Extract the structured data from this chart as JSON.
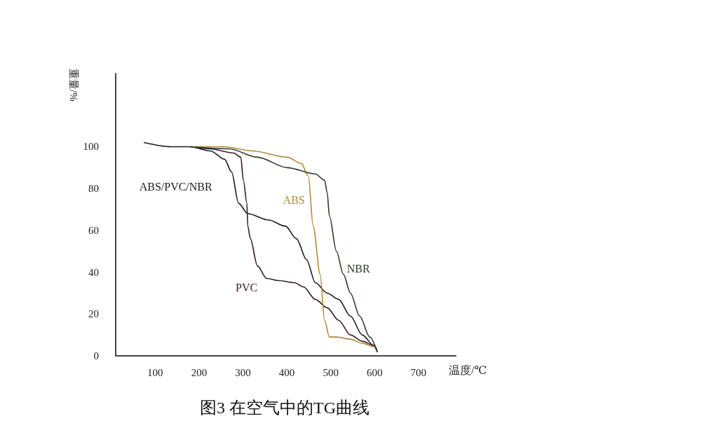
{
  "chart_data": {
    "type": "line",
    "title": "图3 在空气中的TG曲线",
    "xlabel": "温度/℃",
    "ylabel": "重量/%",
    "xlim": [
      10,
      785
    ],
    "ylim": [
      0,
      135
    ],
    "xticks": [
      100,
      200,
      300,
      400,
      500,
      600,
      700
    ],
    "yticks": [
      0,
      20,
      40,
      60,
      80,
      100
    ],
    "grid": false,
    "legend": false,
    "marker": "none",
    "line_style": "solid",
    "series": [
      {
        "name": "ABS/PVC/NBR",
        "color": "#1a1a1a",
        "x": [
          75,
          135,
          180,
          226,
          258,
          274,
          290,
          311,
          358,
          397,
          422,
          445,
          465,
          492,
          518,
          545,
          572,
          598,
          606
        ],
        "values": [
          102,
          100,
          100,
          98,
          94,
          88,
          73,
          68,
          65,
          62,
          56,
          46,
          35,
          30,
          27,
          19,
          10,
          5,
          2
        ]
      },
      {
        "name": "PVC",
        "color": "#3a1a24",
        "x": [
          180,
          226,
          279,
          295,
          301,
          309,
          311,
          317,
          333,
          354,
          381,
          417,
          438,
          465,
          492,
          518,
          545,
          572,
          598,
          606
        ],
        "values": [
          100,
          99,
          97,
          95,
          84,
          73,
          62,
          56,
          43,
          37,
          36,
          35,
          33,
          27,
          23,
          17,
          10,
          7,
          5,
          2
        ]
      },
      {
        "name": "ABS",
        "color": "#b08a3a",
        "x": [
          180,
          258,
          322,
          401,
          433,
          449,
          460,
          476,
          486,
          497,
          513,
          545,
          572,
          604,
          606
        ],
        "values": [
          100,
          100,
          98,
          95,
          92,
          86,
          62,
          39,
          17,
          9,
          9,
          8,
          6,
          4,
          2
        ]
      },
      {
        "name": "NBR",
        "color": "#2b3a2b",
        "x": [
          180,
          269,
          333,
          401,
          465,
          486,
          492,
          497,
          513,
          529,
          545,
          566,
          589,
          606
        ],
        "values": [
          100,
          99,
          95,
          90,
          87,
          84,
          78,
          67,
          50,
          39,
          30,
          19,
          9,
          2
        ]
      }
    ]
  }
}
